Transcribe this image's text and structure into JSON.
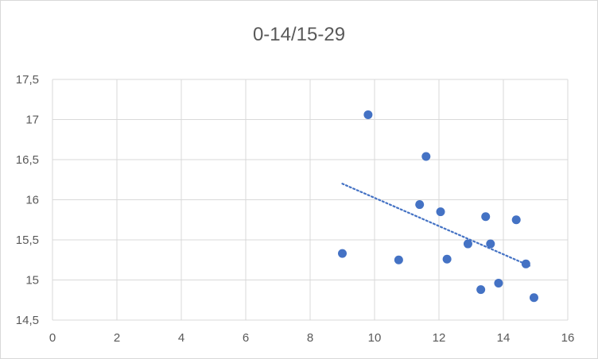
{
  "chart_data": {
    "type": "scatter",
    "title": "0-14/15-29",
    "xlabel": "",
    "ylabel": "",
    "xlim": [
      0,
      16
    ],
    "ylim": [
      14.5,
      17.5
    ],
    "x_ticks": [
      0,
      2,
      4,
      6,
      8,
      10,
      12,
      14,
      16
    ],
    "y_ticks": [
      14.5,
      15,
      15.5,
      16,
      16.5,
      17,
      17.5
    ],
    "x_tick_labels": [
      "0",
      "2",
      "4",
      "6",
      "8",
      "10",
      "12",
      "14",
      "16"
    ],
    "y_tick_labels": [
      "14,5",
      "15",
      "15,5",
      "16",
      "16,5",
      "17",
      "17,5"
    ],
    "grid": true,
    "legend": "none",
    "series": [
      {
        "color": "#4472c4",
        "points": [
          {
            "x": 9.0,
            "y": 15.33
          },
          {
            "x": 9.8,
            "y": 17.06
          },
          {
            "x": 10.75,
            "y": 15.25
          },
          {
            "x": 11.4,
            "y": 15.94
          },
          {
            "x": 11.6,
            "y": 16.54
          },
          {
            "x": 12.05,
            "y": 15.85
          },
          {
            "x": 12.25,
            "y": 15.26
          },
          {
            "x": 12.9,
            "y": 15.45
          },
          {
            "x": 13.3,
            "y": 14.88
          },
          {
            "x": 13.45,
            "y": 15.79
          },
          {
            "x": 13.6,
            "y": 15.45
          },
          {
            "x": 13.85,
            "y": 14.96
          },
          {
            "x": 14.4,
            "y": 15.75
          },
          {
            "x": 14.7,
            "y": 15.2
          },
          {
            "x": 14.95,
            "y": 14.78
          }
        ]
      }
    ],
    "trendline": {
      "type": "linear",
      "style": "dotted",
      "color": "#4472c4",
      "x_start": 9.0,
      "y_start": 16.2,
      "x_end": 14.85,
      "y_end": 15.17
    }
  }
}
